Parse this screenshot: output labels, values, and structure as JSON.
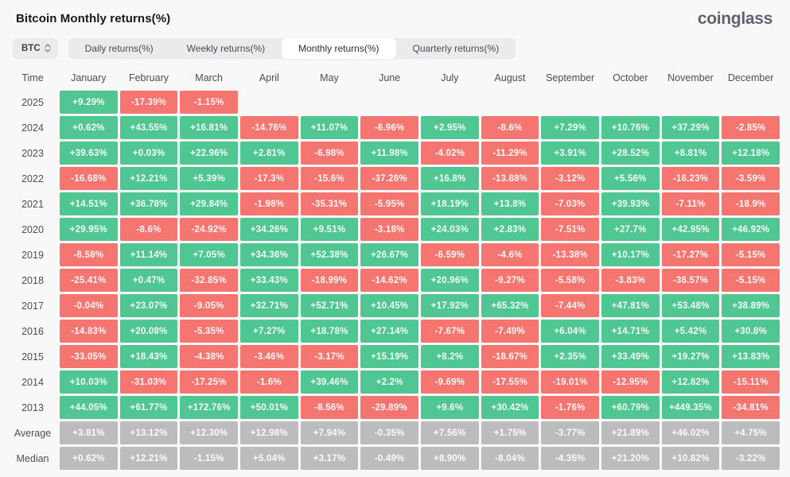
{
  "header": {
    "title": "Bitcoin Monthly returns(%)",
    "logo": "coinglass"
  },
  "controls": {
    "symbol": "BTC",
    "tabs": [
      {
        "label": "Daily returns(%)",
        "active": false
      },
      {
        "label": "Weekly returns(%)",
        "active": false
      },
      {
        "label": "Monthly returns(%)",
        "active": true
      },
      {
        "label": "Quarterly returns(%)",
        "active": false
      }
    ]
  },
  "colors": {
    "positive": "#50c793",
    "negative": "#f57670",
    "neutral": "#bcbcbe",
    "background": "#f8f8f9"
  },
  "chart_data": {
    "type": "table",
    "title": "Bitcoin Monthly returns(%)",
    "columns": [
      "Time",
      "January",
      "February",
      "March",
      "April",
      "May",
      "June",
      "July",
      "August",
      "September",
      "October",
      "November",
      "December"
    ],
    "rows": [
      {
        "label": "2025",
        "summary": false,
        "values": [
          "+9.29%",
          "-17.39%",
          "-1.15%",
          "",
          "",
          "",
          "",
          "",
          "",
          "",
          "",
          ""
        ]
      },
      {
        "label": "2024",
        "summary": false,
        "values": [
          "+0.62%",
          "+43.55%",
          "+16.81%",
          "-14.76%",
          "+11.07%",
          "-6.96%",
          "+2.95%",
          "-8.6%",
          "+7.29%",
          "+10.76%",
          "+37.29%",
          "-2.85%"
        ]
      },
      {
        "label": "2023",
        "summary": false,
        "values": [
          "+39.63%",
          "+0.03%",
          "+22.96%",
          "+2.81%",
          "-6.98%",
          "+11.98%",
          "-4.02%",
          "-11.29%",
          "+3.91%",
          "+28.52%",
          "+8.81%",
          "+12.18%"
        ]
      },
      {
        "label": "2022",
        "summary": false,
        "values": [
          "-16.68%",
          "+12.21%",
          "+5.39%",
          "-17.3%",
          "-15.6%",
          "-37.28%",
          "+16.8%",
          "-13.88%",
          "-3.12%",
          "+5.56%",
          "-16.23%",
          "-3.59%"
        ]
      },
      {
        "label": "2021",
        "summary": false,
        "values": [
          "+14.51%",
          "+36.78%",
          "+29.84%",
          "-1.98%",
          "-35.31%",
          "-5.95%",
          "+18.19%",
          "+13.8%",
          "-7.03%",
          "+39.93%",
          "-7.11%",
          "-18.9%"
        ]
      },
      {
        "label": "2020",
        "summary": false,
        "values": [
          "+29.95%",
          "-8.6%",
          "-24.92%",
          "+34.26%",
          "+9.51%",
          "-3.18%",
          "+24.03%",
          "+2.83%",
          "-7.51%",
          "+27.7%",
          "+42.95%",
          "+46.92%"
        ]
      },
      {
        "label": "2019",
        "summary": false,
        "values": [
          "-8.58%",
          "+11.14%",
          "+7.05%",
          "+34.36%",
          "+52.38%",
          "+26.67%",
          "-6.59%",
          "-4.6%",
          "-13.38%",
          "+10.17%",
          "-17.27%",
          "-5.15%"
        ]
      },
      {
        "label": "2018",
        "summary": false,
        "values": [
          "-25.41%",
          "+0.47%",
          "-32.85%",
          "+33.43%",
          "-18.99%",
          "-14.62%",
          "+20.96%",
          "-9.27%",
          "-5.58%",
          "-3.83%",
          "-36.57%",
          "-5.15%"
        ]
      },
      {
        "label": "2017",
        "summary": false,
        "values": [
          "-0.04%",
          "+23.07%",
          "-9.05%",
          "+32.71%",
          "+52.71%",
          "+10.45%",
          "+17.92%",
          "+65.32%",
          "-7.44%",
          "+47.81%",
          "+53.48%",
          "+38.89%"
        ]
      },
      {
        "label": "2016",
        "summary": false,
        "values": [
          "-14.83%",
          "+20.08%",
          "-5.35%",
          "+7.27%",
          "+18.78%",
          "+27.14%",
          "-7.67%",
          "-7.49%",
          "+6.04%",
          "+14.71%",
          "+5.42%",
          "+30.8%"
        ]
      },
      {
        "label": "2015",
        "summary": false,
        "values": [
          "-33.05%",
          "+18.43%",
          "-4.38%",
          "-3.46%",
          "-3.17%",
          "+15.19%",
          "+8.2%",
          "-18.67%",
          "+2.35%",
          "+33.49%",
          "+19.27%",
          "+13.83%"
        ]
      },
      {
        "label": "2014",
        "summary": false,
        "values": [
          "+10.03%",
          "-31.03%",
          "-17.25%",
          "-1.6%",
          "+39.46%",
          "+2.2%",
          "-9.69%",
          "-17.55%",
          "-19.01%",
          "-12.95%",
          "+12.82%",
          "-15.11%"
        ]
      },
      {
        "label": "2013",
        "summary": false,
        "values": [
          "+44.05%",
          "+61.77%",
          "+172.76%",
          "+50.01%",
          "-8.56%",
          "-29.89%",
          "+9.6%",
          "+30.42%",
          "-1.76%",
          "+60.79%",
          "+449.35%",
          "-34.81%"
        ]
      },
      {
        "label": "Average",
        "summary": true,
        "values": [
          "+3.81%",
          "+13.12%",
          "+12.30%",
          "+12.98%",
          "+7.94%",
          "-0.35%",
          "+7.56%",
          "+1.75%",
          "-3.77%",
          "+21.89%",
          "+46.02%",
          "+4.75%"
        ]
      },
      {
        "label": "Median",
        "summary": true,
        "values": [
          "+0.62%",
          "+12.21%",
          "-1.15%",
          "+5.04%",
          "+3.17%",
          "-0.49%",
          "+8.90%",
          "-8.04%",
          "-4.35%",
          "+21.20%",
          "+10.82%",
          "-3.22%"
        ]
      }
    ]
  }
}
